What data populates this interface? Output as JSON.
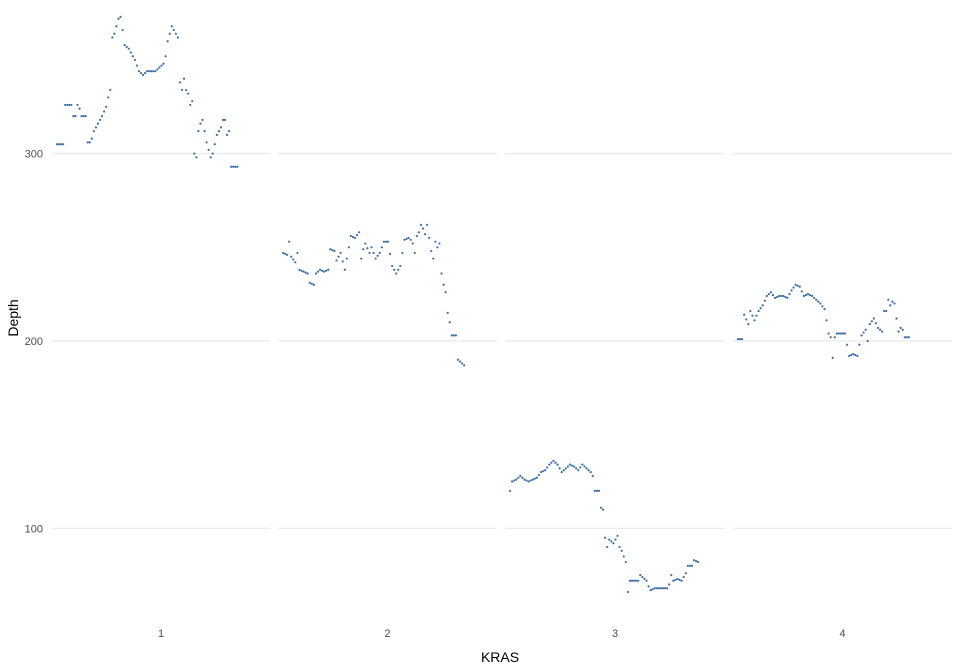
{
  "chart_data": {
    "type": "scatter",
    "xlabel": "KRAS",
    "ylabel": "Depth",
    "ylim": [
      50,
      382
    ],
    "y_ticks": [
      100,
      200,
      300
    ],
    "grid": "horizontal-major",
    "point_color": "#3b6ea5",
    "panels": [
      {
        "label": "1",
        "segments": [
          [
            0.0,
            305
          ],
          [
            0.03,
            305
          ],
          [
            0.04,
            326
          ],
          [
            0.07,
            326
          ],
          [
            0.08,
            320
          ],
          [
            0.09,
            320
          ],
          [
            0.1,
            326
          ],
          [
            0.11,
            324
          ],
          [
            0.12,
            320
          ],
          [
            0.14,
            320
          ],
          [
            0.15,
            306
          ],
          [
            0.16,
            306
          ],
          [
            0.17,
            308
          ],
          [
            0.18,
            312
          ],
          [
            0.2,
            316
          ],
          [
            0.22,
            320
          ],
          [
            0.24,
            325
          ],
          [
            0.25,
            330
          ],
          [
            0.26,
            334
          ],
          [
            0.27,
            362
          ],
          [
            0.28,
            364
          ],
          [
            0.29,
            368
          ],
          [
            0.3,
            372
          ],
          [
            0.31,
            373
          ],
          [
            0.32,
            366
          ],
          [
            0.33,
            358
          ],
          [
            0.35,
            356
          ],
          [
            0.37,
            352
          ],
          [
            0.38,
            350
          ],
          [
            0.4,
            344
          ],
          [
            0.42,
            342
          ],
          [
            0.44,
            344
          ],
          [
            0.46,
            344
          ],
          [
            0.48,
            344
          ],
          [
            0.5,
            346
          ],
          [
            0.52,
            348
          ],
          [
            0.53,
            352
          ],
          [
            0.54,
            360
          ],
          [
            0.55,
            364
          ],
          [
            0.56,
            368
          ],
          [
            0.57,
            366
          ],
          [
            0.58,
            364
          ],
          [
            0.59,
            362
          ],
          [
            0.6,
            338
          ],
          [
            0.61,
            334
          ],
          [
            0.62,
            340
          ],
          [
            0.63,
            334
          ],
          [
            0.64,
            332
          ],
          [
            0.65,
            326
          ],
          [
            0.66,
            328
          ],
          [
            0.67,
            300
          ],
          [
            0.68,
            298
          ],
          [
            0.69,
            312
          ],
          [
            0.7,
            316
          ],
          [
            0.71,
            318
          ],
          [
            0.72,
            312
          ],
          [
            0.73,
            306
          ],
          [
            0.74,
            302
          ],
          [
            0.75,
            298
          ],
          [
            0.76,
            300
          ],
          [
            0.78,
            310
          ],
          [
            0.8,
            314
          ],
          [
            0.81,
            318
          ],
          [
            0.82,
            318
          ],
          [
            0.83,
            310
          ],
          [
            0.84,
            312
          ],
          [
            0.85,
            293
          ],
          [
            0.88,
            293
          ]
        ]
      },
      {
        "label": "2",
        "segments": [
          [
            0.0,
            247
          ],
          [
            0.02,
            246
          ],
          [
            0.03,
            253
          ],
          [
            0.04,
            245
          ],
          [
            0.06,
            242
          ],
          [
            0.07,
            247
          ],
          [
            0.08,
            238
          ],
          [
            0.1,
            237
          ],
          [
            0.12,
            236
          ],
          [
            0.13,
            231
          ],
          [
            0.15,
            230
          ],
          [
            0.16,
            236
          ],
          [
            0.18,
            238
          ],
          [
            0.2,
            237
          ],
          [
            0.22,
            238
          ],
          [
            0.23,
            249
          ],
          [
            0.25,
            248
          ],
          [
            0.26,
            243
          ],
          [
            0.28,
            247
          ],
          [
            0.3,
            238
          ],
          [
            0.31,
            244
          ],
          [
            0.33,
            256
          ],
          [
            0.35,
            255
          ],
          [
            0.37,
            258
          ],
          [
            0.38,
            244
          ],
          [
            0.39,
            249
          ],
          [
            0.4,
            252
          ],
          [
            0.42,
            247
          ],
          [
            0.43,
            250
          ],
          [
            0.45,
            244
          ],
          [
            0.47,
            247
          ],
          [
            0.49,
            253
          ],
          [
            0.51,
            253
          ],
          [
            0.53,
            240
          ],
          [
            0.55,
            236
          ],
          [
            0.57,
            240
          ],
          [
            0.59,
            254
          ],
          [
            0.61,
            255
          ],
          [
            0.62,
            254
          ],
          [
            0.63,
            252
          ],
          [
            0.64,
            247
          ],
          [
            0.65,
            256
          ],
          [
            0.66,
            258
          ],
          [
            0.67,
            262
          ],
          [
            0.68,
            260
          ],
          [
            0.69,
            257
          ],
          [
            0.7,
            262
          ],
          [
            0.71,
            255
          ],
          [
            0.72,
            248
          ],
          [
            0.73,
            244
          ],
          [
            0.74,
            253
          ],
          [
            0.75,
            250
          ],
          [
            0.76,
            252
          ],
          [
            0.77,
            236
          ],
          [
            0.78,
            230
          ],
          [
            0.79,
            226
          ],
          [
            0.8,
            215
          ],
          [
            0.81,
            210
          ],
          [
            0.82,
            203
          ],
          [
            0.84,
            203
          ],
          [
            0.85,
            190
          ],
          [
            0.86,
            189
          ],
          [
            0.88,
            187
          ]
        ]
      },
      {
        "label": "3",
        "segments": [
          [
            0.0,
            120
          ],
          [
            0.01,
            125
          ],
          [
            0.03,
            126
          ],
          [
            0.05,
            128
          ],
          [
            0.07,
            126
          ],
          [
            0.09,
            125
          ],
          [
            0.11,
            126
          ],
          [
            0.13,
            127
          ],
          [
            0.15,
            130
          ],
          [
            0.17,
            131
          ],
          [
            0.19,
            134
          ],
          [
            0.21,
            136
          ],
          [
            0.23,
            134
          ],
          [
            0.25,
            130
          ],
          [
            0.27,
            132
          ],
          [
            0.29,
            134
          ],
          [
            0.31,
            133
          ],
          [
            0.33,
            131
          ],
          [
            0.35,
            134
          ],
          [
            0.37,
            132
          ],
          [
            0.39,
            130
          ],
          [
            0.4,
            128
          ],
          [
            0.41,
            120
          ],
          [
            0.43,
            120
          ],
          [
            0.44,
            111
          ],
          [
            0.45,
            110
          ],
          [
            0.46,
            95
          ],
          [
            0.47,
            90
          ],
          [
            0.48,
            94
          ],
          [
            0.5,
            92
          ],
          [
            0.52,
            96
          ],
          [
            0.53,
            90
          ],
          [
            0.54,
            88
          ],
          [
            0.55,
            85
          ],
          [
            0.56,
            82
          ],
          [
            0.57,
            66
          ],
          [
            0.58,
            72
          ],
          [
            0.6,
            72
          ],
          [
            0.62,
            72
          ],
          [
            0.63,
            75
          ],
          [
            0.64,
            74
          ],
          [
            0.66,
            72
          ],
          [
            0.67,
            69
          ],
          [
            0.68,
            67
          ],
          [
            0.7,
            68
          ],
          [
            0.72,
            68
          ],
          [
            0.74,
            68
          ],
          [
            0.76,
            68
          ],
          [
            0.77,
            70
          ],
          [
            0.78,
            75
          ],
          [
            0.79,
            72
          ],
          [
            0.81,
            73
          ],
          [
            0.83,
            72
          ],
          [
            0.85,
            76
          ],
          [
            0.86,
            80
          ],
          [
            0.88,
            80
          ],
          [
            0.89,
            83
          ],
          [
            0.91,
            82
          ]
        ]
      },
      {
        "label": "4",
        "segments": [
          [
            0.0,
            201
          ],
          [
            0.02,
            201
          ],
          [
            0.03,
            214
          ],
          [
            0.05,
            209
          ],
          [
            0.06,
            216
          ],
          [
            0.08,
            211
          ],
          [
            0.1,
            216
          ],
          [
            0.12,
            219
          ],
          [
            0.14,
            224
          ],
          [
            0.16,
            226
          ],
          [
            0.18,
            223
          ],
          [
            0.2,
            224
          ],
          [
            0.22,
            224
          ],
          [
            0.24,
            223
          ],
          [
            0.26,
            227
          ],
          [
            0.28,
            230
          ],
          [
            0.3,
            229
          ],
          [
            0.32,
            224
          ],
          [
            0.34,
            225
          ],
          [
            0.36,
            224
          ],
          [
            0.38,
            222
          ],
          [
            0.4,
            220
          ],
          [
            0.42,
            217
          ],
          [
            0.43,
            211
          ],
          [
            0.44,
            204
          ],
          [
            0.45,
            202
          ],
          [
            0.46,
            191
          ],
          [
            0.47,
            202
          ],
          [
            0.48,
            204
          ],
          [
            0.5,
            204
          ],
          [
            0.52,
            204
          ],
          [
            0.53,
            198
          ],
          [
            0.54,
            192
          ],
          [
            0.56,
            193
          ],
          [
            0.58,
            192
          ],
          [
            0.59,
            198
          ],
          [
            0.6,
            203
          ],
          [
            0.62,
            206
          ],
          [
            0.63,
            200
          ],
          [
            0.64,
            209
          ],
          [
            0.66,
            212
          ],
          [
            0.68,
            207
          ],
          [
            0.7,
            205
          ],
          [
            0.71,
            216
          ],
          [
            0.72,
            216
          ],
          [
            0.73,
            222
          ],
          [
            0.74,
            219
          ],
          [
            0.75,
            221
          ],
          [
            0.76,
            220
          ],
          [
            0.77,
            212
          ],
          [
            0.78,
            205
          ],
          [
            0.79,
            207
          ],
          [
            0.8,
            206
          ],
          [
            0.81,
            202
          ],
          [
            0.83,
            202
          ]
        ]
      }
    ]
  }
}
